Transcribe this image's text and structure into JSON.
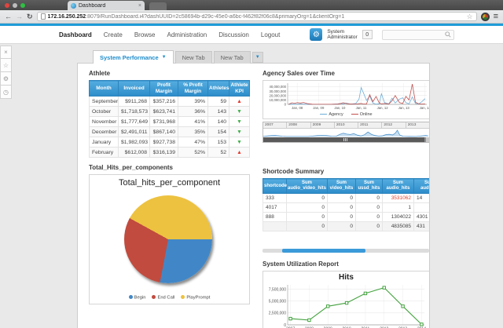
{
  "browser": {
    "tab_title": "Dashboard",
    "url_host": "172.16.250.252",
    "url_rest": ":8079/RunDashboard.i4?dashUUID=2c58694b-d29c-45e0-a6bc-f462f82f06c8&primaryOrg=1&clientOrg=1"
  },
  "nav": {
    "items": [
      "Dashboard",
      "Create",
      "Browse",
      "Administration",
      "Discussion",
      "Logout"
    ],
    "active_item": "Dashboard",
    "user_line1": "System",
    "user_line2": "Administrator",
    "counter": "0",
    "search_placeholder": ""
  },
  "tabs": {
    "active_label": "System Performance",
    "others": [
      "New Tab",
      "New Tab"
    ]
  },
  "colors": {
    "accent_blue": "#1f9bd7",
    "table_header_blue": "#2d8cc9",
    "kpi_up": "#e03a2f",
    "kpi_down": "#3fae49",
    "highlight_red": "#e2442e",
    "scrollbar_blue": "#3b9ad9"
  },
  "athlete": {
    "title": "Athlete",
    "columns": [
      "Month",
      "Invoiced",
      "Profit Margin",
      "% Profit Margin",
      "Athletes",
      "Athlete KPI"
    ],
    "rows": [
      {
        "month": "September",
        "invoiced": "$911,268",
        "profit_margin": "$357,216",
        "pct_profit_margin": "39%",
        "athletes": "59",
        "kpi": "up"
      },
      {
        "month": "October",
        "invoiced": "$1,718,573",
        "profit_margin": "$623,741",
        "pct_profit_margin": "36%",
        "athletes": "143",
        "kpi": "down"
      },
      {
        "month": "November",
        "invoiced": "$1,777,649",
        "profit_margin": "$731,968",
        "pct_profit_margin": "41%",
        "athletes": "140",
        "kpi": "down"
      },
      {
        "month": "December",
        "invoiced": "$2,491,011",
        "profit_margin": "$867,140",
        "pct_profit_margin": "35%",
        "athletes": "154",
        "kpi": "down"
      },
      {
        "month": "January",
        "invoiced": "$1,982,093",
        "profit_margin": "$927,738",
        "pct_profit_margin": "47%",
        "athletes": "153",
        "kpi": "down"
      },
      {
        "month": "February",
        "invoiced": "$612,008",
        "profit_margin": "$316,139",
        "pct_profit_margin": "52%",
        "athletes": "52",
        "kpi": "up"
      }
    ]
  },
  "shortcode": {
    "title": "Shortcode Summary",
    "columns": [
      "shortcode",
      "Sum audio_video_hits",
      "Sum video_hits",
      "Sum ussd_hits",
      "Sum audio_hits",
      "Sum audio_d"
    ],
    "rows": [
      {
        "values": [
          "333",
          "0",
          "0",
          "0",
          "3531062",
          "14"
        ],
        "audio_hits_red": true
      },
      {
        "values": [
          "4017",
          "0",
          "0",
          "0",
          "1",
          ""
        ],
        "audio_hits_red": false
      },
      {
        "values": [
          "888",
          "0",
          "0",
          "0",
          "1304022",
          "4301"
        ],
        "audio_hits_red": false
      },
      {
        "values": [
          "",
          "0",
          "0",
          "0",
          "4835085",
          "431"
        ],
        "audio_hits_red": false
      }
    ]
  },
  "widgets": {
    "agency_label": "Agency Sales over Time",
    "pie_label": "Total_Hits_per_components",
    "utilization_label": "System Utilization Report"
  },
  "chart_data": [
    {
      "type": "line",
      "title": "Agency Sales over Time",
      "x": [
        2007.6,
        2007.75,
        2007.9,
        2008.0,
        2008.15,
        2008.3,
        2008.5,
        2008.7,
        2009.0,
        2009.3,
        2009.6,
        2009.9,
        2010.0,
        2010.15,
        2010.3,
        2010.5,
        2010.75,
        2010.9,
        2011.0,
        2011.1,
        2011.25,
        2011.4,
        2011.55,
        2011.7,
        2011.85,
        2011.95,
        2012.1,
        2012.3,
        2012.45,
        2012.6,
        2012.8,
        2012.95,
        2013.1,
        2013.25,
        2013.4,
        2013.55,
        2013.7,
        2013.85,
        2014.0
      ],
      "series": [
        {
          "name": "Agency",
          "color": "#6faed9",
          "values": [
            300000,
            500000,
            400000,
            600000,
            1000000,
            700000,
            300000,
            200000,
            200000,
            100000,
            200000,
            1000000,
            2000000,
            1200000,
            2800000,
            800000,
            2000000,
            12000000,
            38000000,
            27000000,
            9000000,
            19000000,
            3000000,
            500000,
            1500000,
            24000000,
            4000000,
            1000000,
            14000000,
            3000000,
            12000000,
            15000000,
            4000000,
            1000000,
            17000000,
            2000000,
            1000000,
            6000000,
            13000000
          ]
        },
        {
          "name": "Online",
          "color": "#c0504d",
          "values": [
            200000,
            3500000,
            2500000,
            4000000,
            3000000,
            4200000,
            1500000,
            300000,
            200000,
            100000,
            200000,
            500000,
            1500000,
            3800000,
            2000000,
            500000,
            800000,
            1500000,
            2000000,
            1000000,
            500000,
            22000000,
            6000000,
            18000000,
            3000000,
            1000000,
            2000000,
            1000000,
            8000000,
            20000000,
            4000000,
            2000000,
            18000000,
            10000000,
            46000000,
            5000000,
            1000000,
            500000,
            1000000
          ]
        }
      ],
      "xticks": [
        2008,
        2009,
        2010,
        2011,
        2012,
        2013,
        2014
      ],
      "xtick_labels": [
        "Jan, 08",
        "Jan, 09",
        "Jan, 10",
        "Jan, 11",
        "Jan, 12",
        "Jan, 13",
        "Jan, 14"
      ],
      "yticks": [
        0,
        10000000,
        20000000,
        30000000,
        40000000
      ],
      "xlim": [
        2007.55,
        2014.08
      ],
      "ylim": [
        0,
        48000000
      ],
      "grid": true,
      "legend_position": "bottom"
    },
    {
      "type": "area",
      "title": "Timeline navigator",
      "color": "#4f94cd",
      "year_labels": [
        "2007",
        "2008",
        "2009",
        "2010",
        "2011",
        "2012",
        "2013"
      ],
      "x": [
        2007.0,
        2007.2,
        2007.35,
        2007.5,
        2007.65,
        2007.8,
        2008.0,
        2008.5,
        2008.9,
        2009.1,
        2009.3,
        2009.5,
        2009.7,
        2009.9,
        2010.1,
        2010.25,
        2010.4,
        2010.55,
        2010.7,
        2010.85,
        2011.0,
        2011.15,
        2011.3,
        2011.45,
        2011.6,
        2011.75,
        2011.9,
        2012.05,
        2012.2,
        2012.35,
        2012.5,
        2012.6,
        2012.7,
        2012.8,
        2012.95,
        2013.2,
        2013.5,
        2013.75,
        2013.9,
        2014.0
      ],
      "values": [
        0.1,
        0.6,
        0.9,
        1.0,
        0.8,
        0.3,
        0.1,
        0.05,
        0.1,
        0.5,
        0.9,
        1.1,
        0.9,
        0.4,
        0.3,
        2.2,
        3.3,
        2.4,
        2.0,
        2.9,
        1.4,
        0.6,
        1.8,
        4.4,
        2.2,
        1.0,
        0.5,
        0.6,
        1.8,
        2.2,
        1.6,
        3.0,
        6.2,
        1.5,
        0.3,
        0.15,
        0.1,
        0.7,
        1.1,
        0.8
      ],
      "xlim": [
        2007.0,
        2014.05
      ],
      "ylim": [
        0,
        7
      ]
    },
    {
      "type": "pie",
      "title": "Total_hits_per_component",
      "labels": [
        "Begin",
        "End Call",
        "PlayPrompt"
      ],
      "values": [
        28,
        30,
        42
      ],
      "colors": [
        "#4187c7",
        "#c14b3e",
        "#edc240"
      ],
      "legend_position": "bottom"
    },
    {
      "type": "line",
      "title": "Hits",
      "x": [
        2007,
        2008,
        2009,
        2010,
        2011,
        2012,
        2013,
        2014
      ],
      "series": [
        {
          "name": "Hits",
          "color": "#44a340",
          "values": [
            1300000,
            1000000,
            3900000,
            4600000,
            6600000,
            7800000,
            3900000,
            100000
          ]
        }
      ],
      "xticks": [
        2007,
        2008,
        2009,
        2010,
        2011,
        2012,
        2013,
        2014
      ],
      "yticks": [
        0,
        2500000,
        5000000,
        7500000
      ],
      "xlim": [
        2006.85,
        2014.15
      ],
      "ylim": [
        0,
        8400000
      ],
      "grid": true,
      "marker": "square"
    }
  ]
}
